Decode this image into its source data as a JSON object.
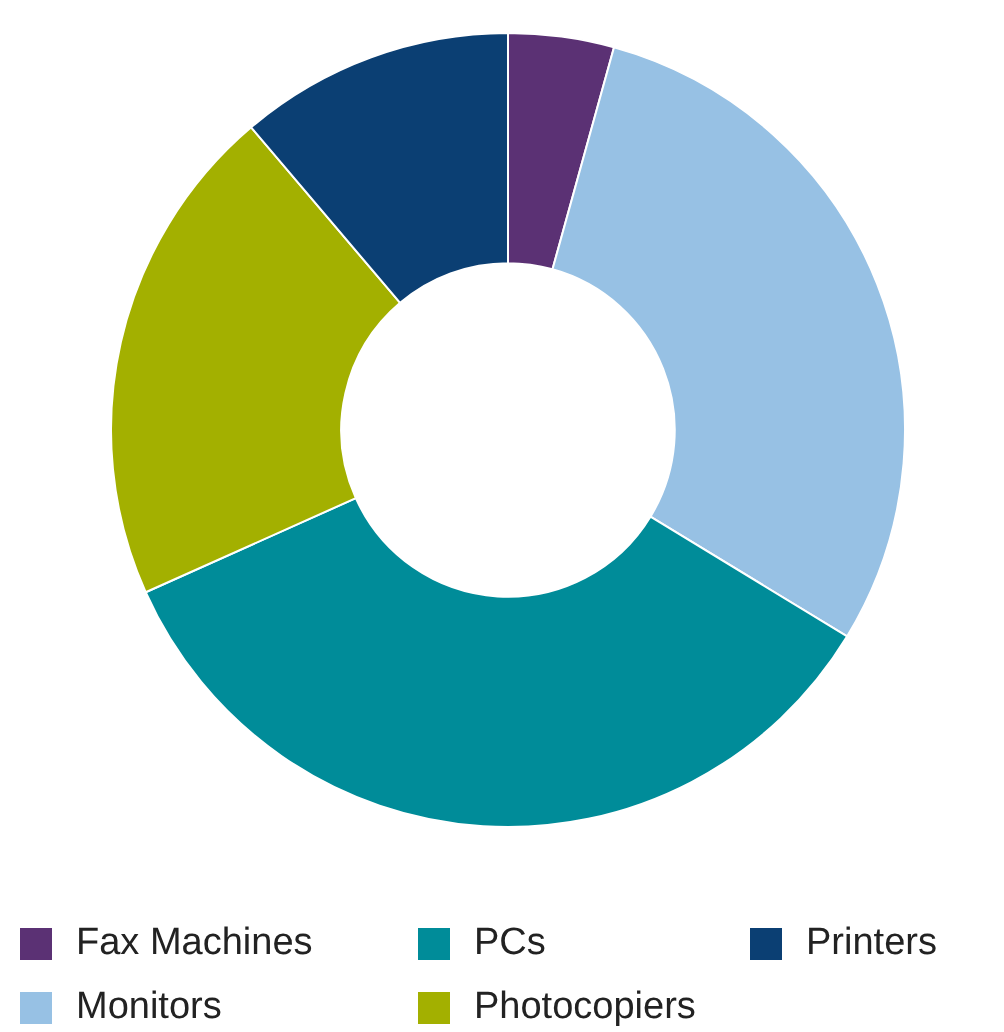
{
  "chart_data": {
    "type": "donut",
    "categories": [
      "Fax Machines",
      "Monitors",
      "PCs",
      "Photocopiers",
      "Printers"
    ],
    "values": [
      4.3,
      29.4,
      34.6,
      20.5,
      11.2
    ],
    "colors": [
      "#5b3174",
      "#97c1e4",
      "#008c99",
      "#a3b000",
      "#0b3f73"
    ],
    "legend": "bottom"
  }
}
